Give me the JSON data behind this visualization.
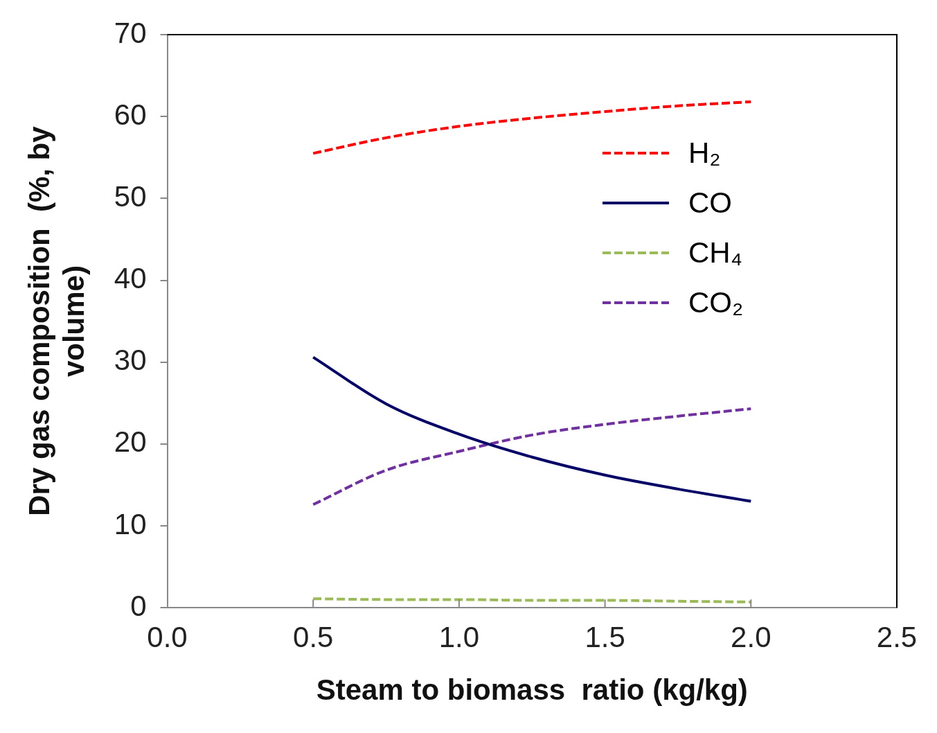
{
  "chart_data": {
    "type": "line",
    "xlabel": "Steam to biomass  ratio (kg/kg)",
    "ylabel": "Dry gas composition  (%, by volume)",
    "x": [
      0.5,
      0.75,
      1.0,
      1.25,
      1.5,
      1.75,
      2.0
    ],
    "series": [
      {
        "name": "H₂",
        "color": "#ff0000",
        "line_style": "dashed",
        "values": [
          55.5,
          57.4,
          58.8,
          59.8,
          60.6,
          61.3,
          61.8
        ]
      },
      {
        "name": "CO",
        "color": "#000066",
        "line_style": "solid",
        "values": [
          30.6,
          24.9,
          21.2,
          18.4,
          16.2,
          14.5,
          13.0
        ]
      },
      {
        "name": "CH₄",
        "color": "#9bbb59",
        "line_style": "dashed",
        "values": [
          1.1,
          1.0,
          1.0,
          0.9,
          0.9,
          0.8,
          0.7
        ]
      },
      {
        "name": "CO₂",
        "color": "#7030a0",
        "line_style": "dashed",
        "values": [
          12.6,
          16.8,
          19.1,
          21.1,
          22.4,
          23.4,
          24.3
        ]
      }
    ],
    "xlim": [
      0.0,
      2.5
    ],
    "xticks": [
      {
        "value": 0,
        "label": "0.0"
      },
      {
        "value": 0.5,
        "label": "0.5"
      },
      {
        "value": 1,
        "label": "1.0"
      },
      {
        "value": 1.5,
        "label": "1.5"
      },
      {
        "value": 2,
        "label": "2.0"
      },
      {
        "value": 2.5,
        "label": "2.5"
      }
    ],
    "ylim": [
      0,
      70
    ],
    "yticks": [
      0,
      10,
      20,
      30,
      40,
      50,
      60,
      70
    ],
    "grid": false,
    "legend": "top right",
    "marker": "none"
  }
}
